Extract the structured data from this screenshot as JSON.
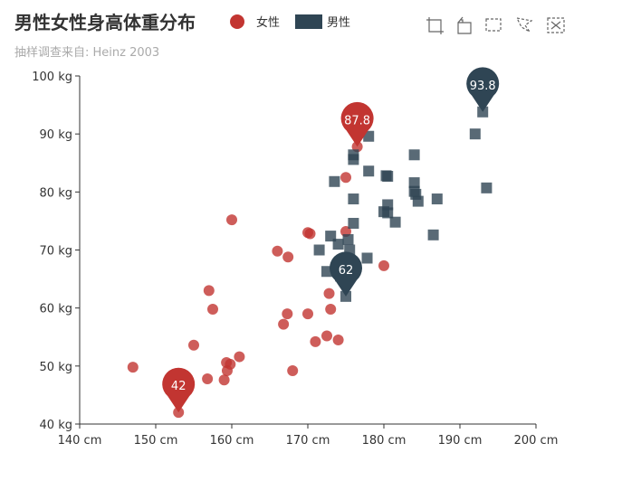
{
  "chart_data": {
    "type": "scatter",
    "title": "男性女性身高体重分布",
    "subtitle": "抽样调查来自: Heinz  2003",
    "x_unit": "cm",
    "y_unit": "kg",
    "xlim": [
      140,
      200
    ],
    "ylim": [
      40,
      100
    ],
    "x_ticks": [
      140,
      150,
      160,
      170,
      180,
      190,
      200
    ],
    "y_ticks": [
      40,
      50,
      60,
      70,
      80,
      90,
      100
    ],
    "legend": {
      "position": "top",
      "entries": [
        "女性",
        "男性"
      ]
    },
    "series": [
      {
        "name": "女性",
        "marker": "circle",
        "color": "#c23531",
        "points": [
          [
            147.0,
            49.8
          ],
          [
            153.0,
            42.0
          ],
          [
            155.0,
            53.6
          ],
          [
            156.8,
            47.8
          ],
          [
            157.0,
            63.0
          ],
          [
            157.5,
            59.8
          ],
          [
            159.0,
            47.6
          ],
          [
            159.3,
            50.6
          ],
          [
            159.4,
            49.2
          ],
          [
            159.8,
            50.3
          ],
          [
            160.0,
            75.2
          ],
          [
            161.0,
            51.6
          ],
          [
            166.0,
            69.8
          ],
          [
            166.8,
            57.2
          ],
          [
            167.3,
            59.0
          ],
          [
            167.4,
            68.8
          ],
          [
            168.0,
            49.2
          ],
          [
            170.0,
            73.0
          ],
          [
            170.0,
            59.0
          ],
          [
            170.3,
            72.8
          ],
          [
            171.0,
            54.2
          ],
          [
            172.5,
            55.2
          ],
          [
            172.8,
            62.5
          ],
          [
            173.0,
            59.8
          ],
          [
            174.0,
            54.5
          ],
          [
            175.0,
            82.5
          ],
          [
            175.0,
            73.2
          ],
          [
            176.5,
            87.8
          ],
          [
            180.0,
            67.3
          ]
        ],
        "pin": {
          "label": "42",
          "value": 42,
          "point": [
            153.0,
            42.0
          ]
        },
        "pin2": {
          "label": "87.8",
          "value": 87.8,
          "point": [
            176.5,
            87.8
          ]
        }
      },
      {
        "name": "男性",
        "marker": "square",
        "color": "#2f4554",
        "points": [
          [
            171.5,
            70.0
          ],
          [
            172.5,
            66.3
          ],
          [
            173.0,
            72.4
          ],
          [
            173.5,
            81.8
          ],
          [
            174.0,
            71.0
          ],
          [
            174.3,
            65.5
          ],
          [
            175.0,
            62.0
          ],
          [
            175.3,
            71.8
          ],
          [
            175.5,
            70.0
          ],
          [
            176.0,
            74.6
          ],
          [
            176.0,
            78.8
          ],
          [
            176.0,
            86.4
          ],
          [
            176.0,
            85.6
          ],
          [
            177.8,
            68.6
          ],
          [
            178.0,
            83.6
          ],
          [
            178.0,
            89.6
          ],
          [
            180.0,
            76.6
          ],
          [
            180.3,
            82.8
          ],
          [
            180.5,
            82.7
          ],
          [
            180.5,
            77.8
          ],
          [
            180.5,
            76.4
          ],
          [
            181.5,
            74.8
          ],
          [
            184.0,
            86.4
          ],
          [
            184.0,
            81.6
          ],
          [
            184.0,
            80.1
          ],
          [
            184.2,
            79.6
          ],
          [
            184.5,
            78.4
          ],
          [
            186.5,
            72.6
          ],
          [
            187.0,
            78.8
          ],
          [
            192.0,
            90.0
          ],
          [
            193.0,
            93.8
          ],
          [
            193.5,
            80.7
          ]
        ],
        "pin": {
          "label": "62",
          "value": 62,
          "point": [
            175.0,
            62.0
          ]
        },
        "pin2": {
          "label": "93.8",
          "value": 93.8,
          "point": [
            193.0,
            93.8
          ]
        }
      }
    ]
  },
  "toolbox": {
    "icons": [
      "rect-zoom-icon",
      "polygon-zoom-icon",
      "rect-select-icon",
      "lasso-select-icon",
      "clear-select-icon"
    ]
  }
}
